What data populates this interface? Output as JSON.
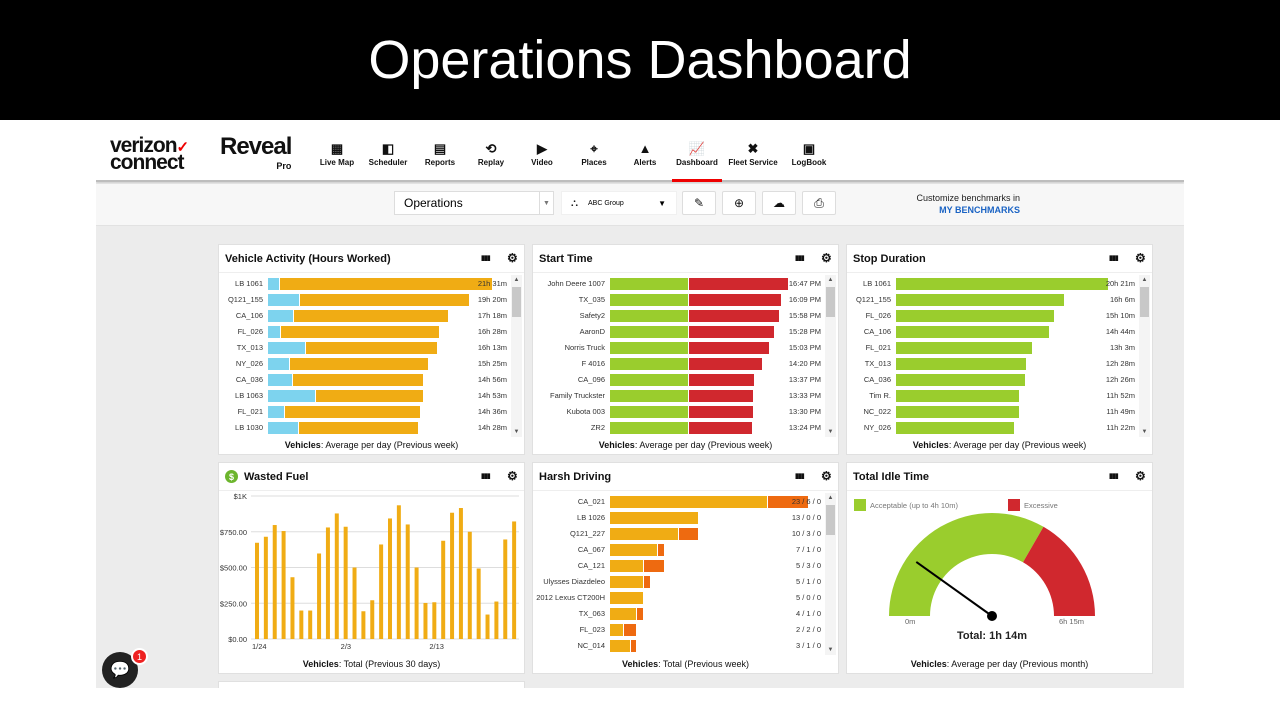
{
  "slide_title": "Operations Dashboard",
  "brand": {
    "verizon_line1": "verizon",
    "verizon_line2": "connect",
    "reveal": "Reveal",
    "reveal_tier": "Pro"
  },
  "nav": [
    {
      "label": "Live Map",
      "icon": "map-icon",
      "glyph": "▦"
    },
    {
      "label": "Scheduler",
      "icon": "scheduler-icon",
      "glyph": "◧"
    },
    {
      "label": "Reports",
      "icon": "reports-icon",
      "glyph": "▤"
    },
    {
      "label": "Replay",
      "icon": "replay-icon",
      "glyph": "⟲"
    },
    {
      "label": "Video",
      "icon": "video-icon",
      "glyph": "▶"
    },
    {
      "label": "Places",
      "icon": "places-icon",
      "glyph": "⌖"
    },
    {
      "label": "Alerts",
      "icon": "alert-icon",
      "glyph": "▲"
    },
    {
      "label": "Dashboard",
      "icon": "dashboard-icon",
      "glyph": "📈",
      "active": true
    },
    {
      "label": "Fleet Service",
      "icon": "wrench-icon",
      "glyph": "✖"
    },
    {
      "label": "LogBook",
      "icon": "logbook-icon",
      "glyph": "▣"
    }
  ],
  "toolbar": {
    "dashboard_select": "Operations",
    "group_select": "ABC Group",
    "benchmark_text": "Customize benchmarks in",
    "benchmark_link": "MY BENCHMARKS"
  },
  "colors": {
    "blue": "#7dd3ee",
    "orange": "#f0ac14",
    "green": "#9acd2d",
    "red": "#d0282e",
    "dark_orange": "#ee6a10",
    "accent": "#e00000"
  },
  "panels": {
    "vehicle_activity": {
      "title": "Vehicle Activity (Hours Worked)",
      "footer_bold": "Vehicles",
      "footer_text": ": Average per day (Previous week)",
      "rows": [
        {
          "label": "LB 1061",
          "blue_hours": 1.1,
          "value": "21h 31m"
        },
        {
          "label": "Q121_155",
          "blue_hours": 3.1,
          "value": "19h 20m"
        },
        {
          "label": "CA_106",
          "blue_hours": 2.5,
          "value": "17h 18m"
        },
        {
          "label": "FL_026",
          "blue_hours": 1.2,
          "value": "16h 28m"
        },
        {
          "label": "TX_013",
          "blue_hours": 3.6,
          "value": "16h 13m"
        },
        {
          "label": "NY_026",
          "blue_hours": 2.1,
          "value": "15h 25m"
        },
        {
          "label": "CA_036",
          "blue_hours": 2.4,
          "value": "14h 56m"
        },
        {
          "label": "LB 1063",
          "blue_hours": 4.6,
          "value": "14h 53m"
        },
        {
          "label": "FL_021",
          "blue_hours": 1.6,
          "value": "14h 36m"
        },
        {
          "label": "LB 1030",
          "blue_hours": 3.0,
          "value": "14h 28m"
        }
      ]
    },
    "start_time": {
      "title": "Start Time",
      "footer_bold": "Vehicles",
      "footer_text": ": Average per day (Previous week)",
      "threshold_hours": 7.4,
      "rows": [
        {
          "label": "John Deere 1007",
          "value": "16:47 PM"
        },
        {
          "label": "TX_035",
          "value": "16:09 PM"
        },
        {
          "label": "Safety2",
          "value": "15:58 PM"
        },
        {
          "label": "AaronD",
          "value": "15:28 PM"
        },
        {
          "label": "Norris Truck",
          "value": "15:03 PM"
        },
        {
          "label": "F 4016",
          "value": "14:20 PM"
        },
        {
          "label": "CA_096",
          "value": "13:37 PM"
        },
        {
          "label": "Family Truckster",
          "value": "13:33 PM"
        },
        {
          "label": "Kubota 003",
          "value": "13:30 PM"
        },
        {
          "label": "ZR2",
          "value": "13:24 PM"
        }
      ]
    },
    "stop_duration": {
      "title": "Stop Duration",
      "footer_bold": "Vehicles",
      "footer_text": ": Average per day (Previous week)",
      "rows": [
        {
          "label": "LB 1061",
          "value": "20h 21m"
        },
        {
          "label": "Q121_155",
          "value": "16h 6m"
        },
        {
          "label": "FL_026",
          "value": "15h 10m"
        },
        {
          "label": "CA_106",
          "value": "14h 44m"
        },
        {
          "label": "FL_021",
          "value": "13h 3m"
        },
        {
          "label": "TX_013",
          "value": "12h 28m"
        },
        {
          "label": "CA_036",
          "value": "12h 26m"
        },
        {
          "label": "Tim R.",
          "value": "11h 52m"
        },
        {
          "label": "NC_022",
          "value": "11h 49m"
        },
        {
          "label": "NY_026",
          "value": "11h 22m"
        }
      ]
    },
    "wasted_fuel": {
      "title": "Wasted Fuel",
      "footer_bold": "Vehicles",
      "footer_text": ": Total (Previous 30 days)"
    },
    "harsh_driving": {
      "title": "Harsh Driving",
      "footer_bold": "Vehicles",
      "footer_text": ": Total (Previous week)",
      "rows": [
        {
          "label": "CA_021",
          "value": "23 / 6 / 0"
        },
        {
          "label": "LB 1026",
          "value": "13 / 0 / 0"
        },
        {
          "label": "Q121_227",
          "value": "10 / 3 / 0"
        },
        {
          "label": "CA_067",
          "value": "7 / 1 / 0"
        },
        {
          "label": "CA_121",
          "value": "5 / 3 / 0"
        },
        {
          "label": "Ulysses Diazdeleo",
          "value": "5 / 1 / 0"
        },
        {
          "label": "2012 Lexus CT200H",
          "value": "5 / 0 / 0"
        },
        {
          "label": "TX_063",
          "value": "4 / 1 / 0"
        },
        {
          "label": "FL_023",
          "value": "2 / 2 / 0"
        },
        {
          "label": "NC_014",
          "value": "3 / 1 / 0"
        }
      ]
    },
    "idle_time": {
      "title": "Total Idle Time",
      "legend_ok": "Acceptable (up to 4h 10m)",
      "legend_bad": "Excessive",
      "min_label": "0m",
      "max_label": "6h 15m",
      "total": "Total: 1h 14m",
      "gauge_max_minutes": 375,
      "acceptable_minutes": 250,
      "value_minutes": 74,
      "footer_bold": "Vehicles",
      "footer_text": ": Average per day (Previous month)"
    }
  },
  "chart_data": {
    "type": "bar",
    "title": "Wasted Fuel",
    "yticks": [
      "$0.00",
      "$250.00",
      "$500.00",
      "$750.00",
      "$1K"
    ],
    "ylim": [
      0,
      1000
    ],
    "xtick_labels": [
      {
        "index": 0,
        "label": "1/24"
      },
      {
        "index": 10,
        "label": "2/3"
      },
      {
        "index": 20,
        "label": "2/13"
      }
    ],
    "values": [
      673,
      715,
      797,
      755,
      432,
      199,
      199,
      598,
      780,
      878,
      785,
      500,
      194,
      271,
      661,
      843,
      935,
      801,
      500,
      252,
      257,
      687,
      883,
      916,
      750,
      493,
      171,
      262,
      696,
      822
    ],
    "grid": true,
    "color": "#f0ac14"
  },
  "chat": {
    "badge": "1"
  }
}
